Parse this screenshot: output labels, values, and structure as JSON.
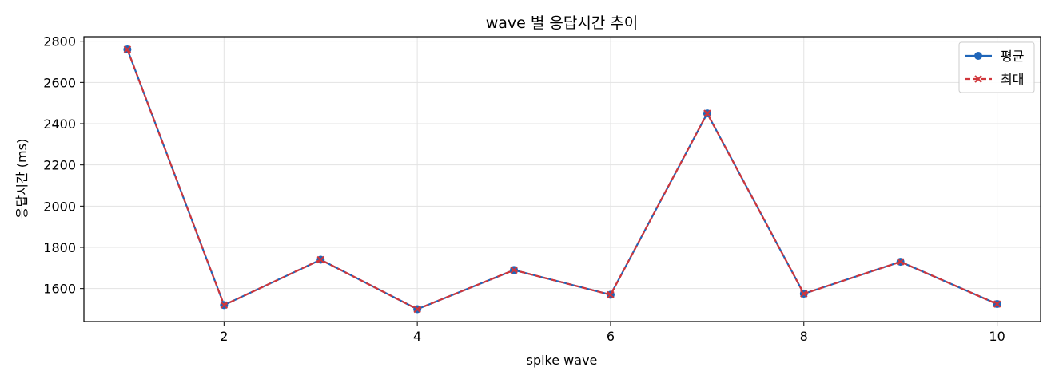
{
  "chart_data": {
    "type": "line",
    "title": "wave 별 응답시간 추이",
    "xlabel": "spike wave",
    "ylabel": "응답시간 (ms)",
    "x": [
      1,
      2,
      3,
      4,
      5,
      6,
      7,
      8,
      9,
      10
    ],
    "series": [
      {
        "name": "평균",
        "values": [
          2760,
          1520,
          1740,
          1500,
          1690,
          1570,
          2450,
          1575,
          1730,
          1525
        ],
        "color": "#1f65b9",
        "marker": "circle",
        "line_style": "solid"
      },
      {
        "name": "최대",
        "values": [
          2760,
          1520,
          1740,
          1500,
          1690,
          1570,
          2450,
          1575,
          1730,
          1525
        ],
        "color": "#d0363b",
        "marker": "x",
        "line_style": "dashed"
      }
    ],
    "xlim": [
      0.55,
      10.45
    ],
    "ylim": [
      1440,
      2822
    ],
    "xticks": [
      2,
      4,
      6,
      8,
      10
    ],
    "yticks": [
      1600,
      1800,
      2000,
      2200,
      2400,
      2600,
      2800
    ],
    "grid": true,
    "legend_position": "top-right"
  }
}
